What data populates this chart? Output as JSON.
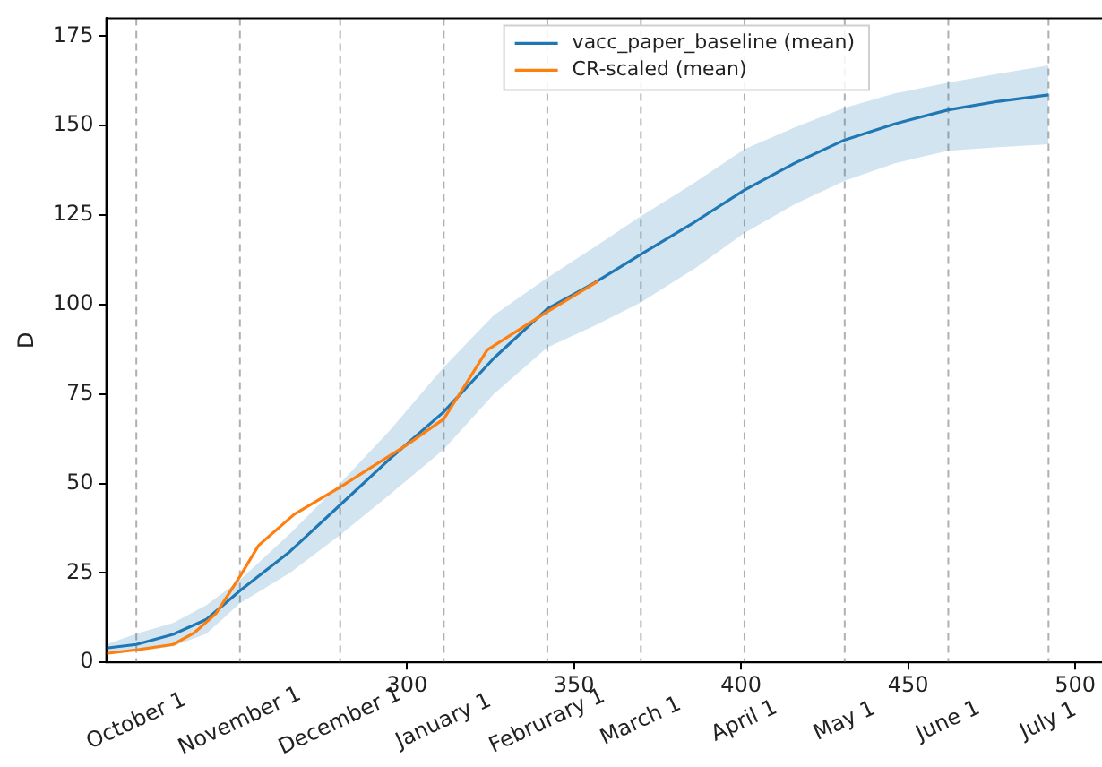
{
  "chart_data": {
    "type": "line",
    "ylabel": "D",
    "xlim": [
      210,
      508
    ],
    "ylim": [
      0,
      180
    ],
    "xticks": [
      300,
      350,
      400,
      450,
      500
    ],
    "yticks": [
      0,
      25,
      50,
      75,
      100,
      125,
      150,
      175
    ],
    "grid": false,
    "legend": "top right",
    "marker": "none",
    "line_style": "solid",
    "series": [
      {
        "name": "vacc_paper_baseline (mean)",
        "color": "#1f77b4",
        "x": [
          210,
          219,
          230,
          240,
          250,
          265,
          280,
          295,
          311,
          326,
          342,
          356,
          370,
          386,
          401,
          416,
          431,
          446,
          462,
          477,
          492
        ],
        "values": [
          4,
          5,
          7.8,
          12,
          20,
          31,
          44,
          57,
          70,
          85,
          98.8,
          106,
          114,
          123,
          132,
          139.5,
          146,
          150.5,
          154.4,
          156.8,
          158.6
        ],
        "lower": [
          3,
          3,
          4.5,
          8,
          16.5,
          25,
          35.6,
          47,
          59.5,
          75,
          88,
          94,
          100.6,
          110,
          120,
          128,
          134.6,
          139.5,
          143,
          144,
          144.8
        ],
        "upper": [
          5,
          8,
          11,
          16,
          23,
          36,
          50,
          65,
          82.5,
          97,
          107.5,
          116,
          124.7,
          134,
          143.4,
          149.5,
          155,
          159,
          162,
          164.5,
          166.8
        ]
      },
      {
        "name": "CR-scaled (mean)",
        "color": "#ff7f0e",
        "x": [
          210,
          219,
          230,
          236.4,
          242.8,
          250,
          255.6,
          266.3,
          280,
          289.8,
          299.5,
          311,
          324,
          342,
          357.2
        ],
        "values": [
          2.5,
          3.5,
          5,
          8.3,
          13.6,
          24,
          32.7,
          41.4,
          49,
          54.8,
          60.5,
          68,
          87.3,
          98,
          106.5
        ]
      }
    ],
    "ref_lines": [
      {
        "axis": "x",
        "value": 219,
        "label": "October 1",
        "color": "#b0b0b0",
        "line_style": "dashed"
      },
      {
        "axis": "x",
        "value": 250,
        "label": "November 1",
        "color": "#b0b0b0",
        "line_style": "dashed"
      },
      {
        "axis": "x",
        "value": 280,
        "label": "December 1",
        "color": "#b0b0b0",
        "line_style": "dashed"
      },
      {
        "axis": "x",
        "value": 311,
        "label": "January 1",
        "color": "#b0b0b0",
        "line_style": "dashed"
      },
      {
        "axis": "x",
        "value": 342,
        "label": "Februrary 1",
        "color": "#b0b0b0",
        "line_style": "dashed"
      },
      {
        "axis": "x",
        "value": 370,
        "label": "March 1",
        "color": "#b0b0b0",
        "line_style": "dashed"
      },
      {
        "axis": "x",
        "value": 401,
        "label": "April 1",
        "color": "#b0b0b0",
        "line_style": "dashed"
      },
      {
        "axis": "x",
        "value": 431,
        "label": "May 1",
        "color": "#b0b0b0",
        "line_style": "dashed"
      },
      {
        "axis": "x",
        "value": 462,
        "label": "June 1",
        "color": "#b0b0b0",
        "line_style": "dashed"
      },
      {
        "axis": "x",
        "value": 492,
        "label": "July 1",
        "color": "#b0b0b0",
        "line_style": "dashed"
      }
    ]
  }
}
